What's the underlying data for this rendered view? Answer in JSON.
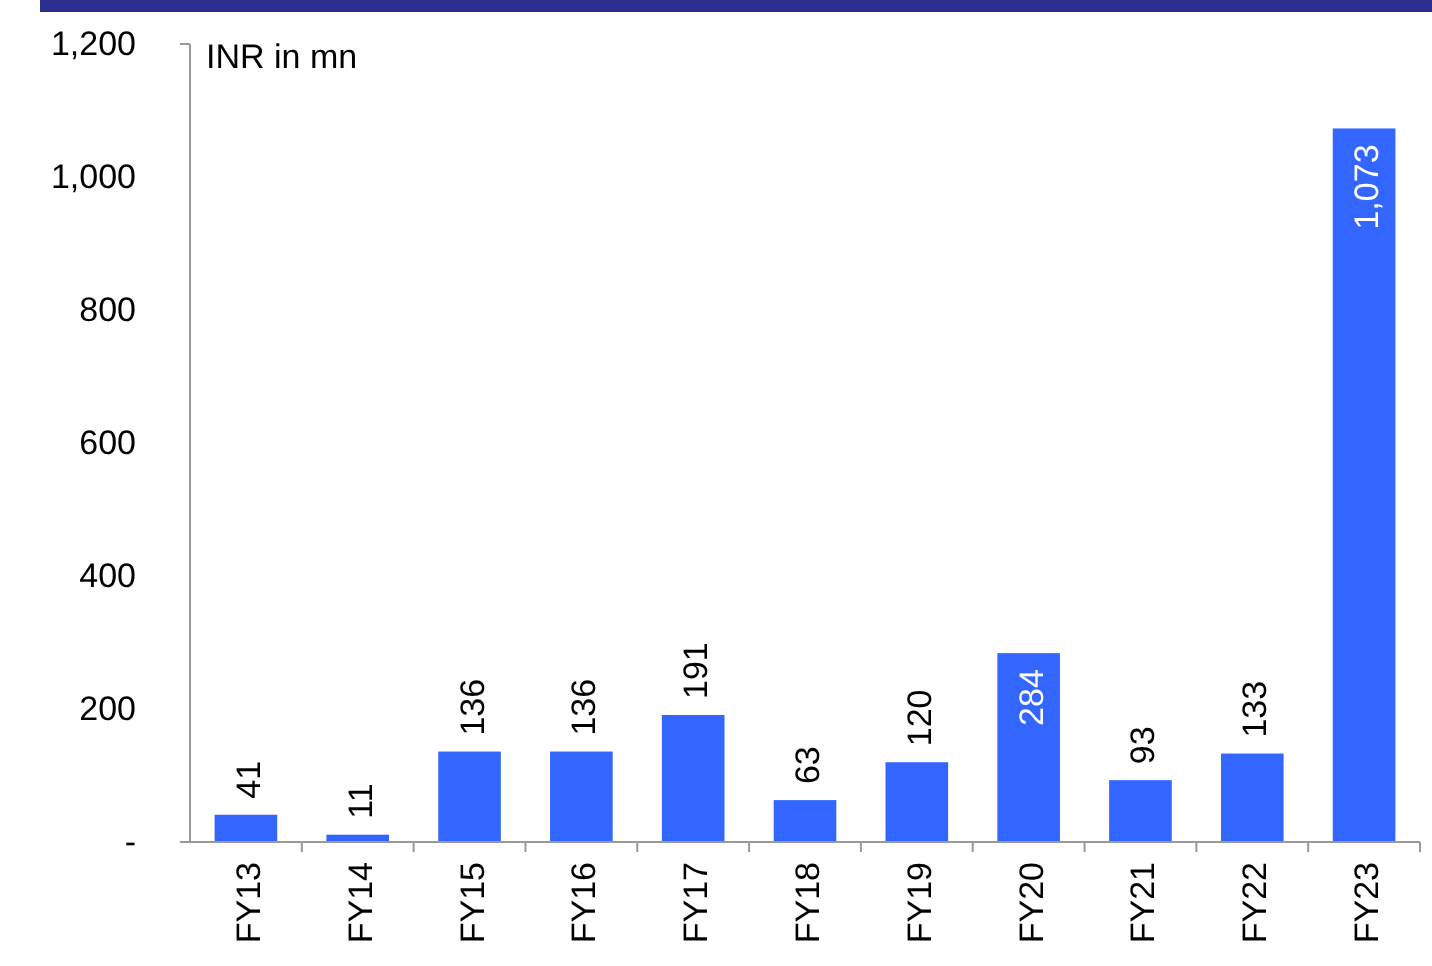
{
  "chart_data": {
    "type": "bar",
    "ylabel": "INR in mn",
    "categories": [
      "FY13",
      "FY14",
      "FY15",
      "FY16",
      "FY17",
      "FY18",
      "FY19",
      "FY20",
      "FY21",
      "FY22",
      "FY23"
    ],
    "values": [
      41,
      11,
      136,
      136,
      191,
      63,
      120,
      284,
      93,
      133,
      1073
    ],
    "color": "#3366ff",
    "value_labels": [
      "41",
      "11",
      "136",
      "136",
      "191",
      "63",
      "120",
      "284",
      "93",
      "133",
      "1,073"
    ],
    "ylim": [
      0,
      1200
    ],
    "yticks": [
      {
        "value": 0,
        "label": "-"
      },
      200,
      400,
      600,
      800,
      {
        "value": 1000,
        "label": "1,000"
      },
      {
        "value": 1200,
        "label": "1,200"
      }
    ],
    "grid": false
  }
}
